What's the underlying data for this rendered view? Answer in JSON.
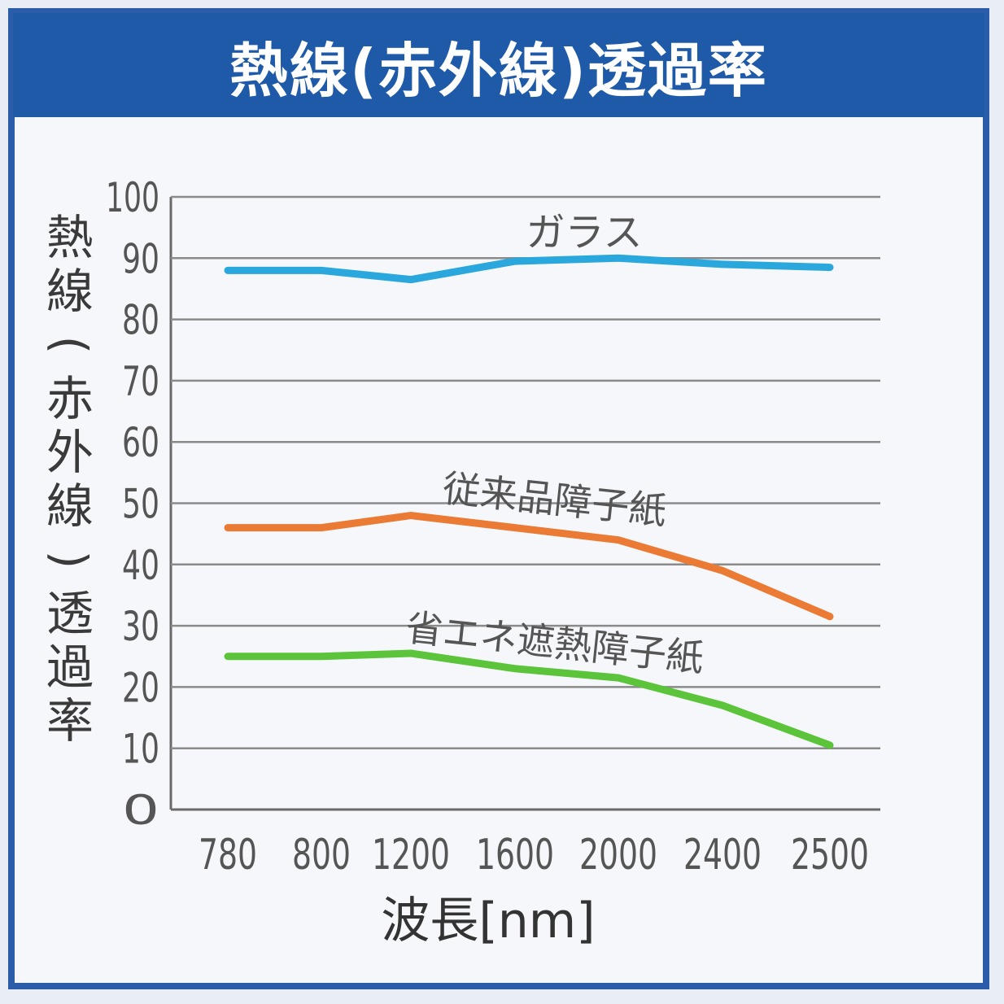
{
  "chart_data": {
    "type": "line",
    "title": "熱線(赤外線)透過率",
    "ylabel": "熱線(赤外線)透過率",
    "xlabel": "波長[nm]",
    "categories": [
      "780",
      "800",
      "1200",
      "1600",
      "2000",
      "2400",
      "2500"
    ],
    "ylim": [
      0,
      100
    ],
    "yticks": [
      0,
      10,
      20,
      30,
      40,
      50,
      60,
      70,
      80,
      90,
      100
    ],
    "grid": true,
    "series": [
      {
        "name": "ガラス",
        "color": "#2aa7dc",
        "values": [
          88,
          88,
          86.5,
          89.5,
          90,
          89,
          88.5
        ]
      },
      {
        "name": "従来品障子紙",
        "color": "#ea7a34",
        "values": [
          46,
          46,
          48,
          46,
          44,
          39,
          31.5
        ]
      },
      {
        "name": "省エネ遮熱障子紙",
        "color": "#5cc43a",
        "values": [
          25,
          25,
          25.5,
          23,
          21.5,
          17,
          10.5
        ]
      }
    ]
  }
}
